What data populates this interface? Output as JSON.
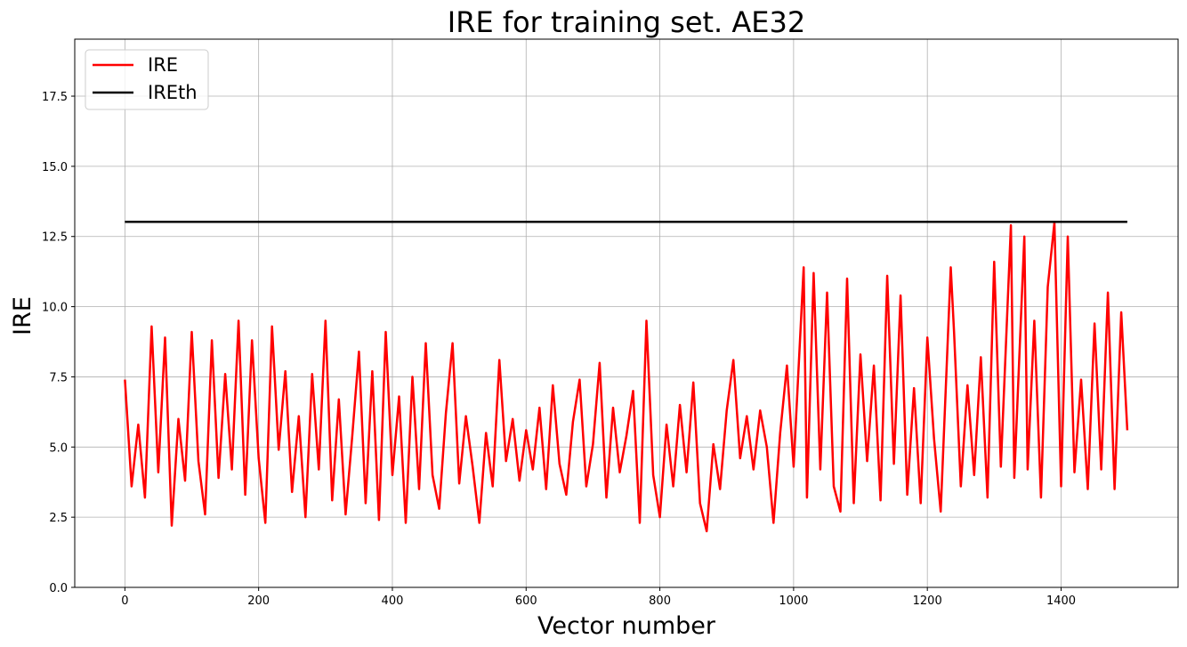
{
  "chart_data": {
    "type": "line",
    "title": "IRE for training set. AE32",
    "xlabel": "Vector number",
    "ylabel": "IRE",
    "xlim": [
      -75,
      1575
    ],
    "ylim": [
      0,
      19.53
    ],
    "xticks": [
      "0",
      "200",
      "400",
      "600",
      "800",
      "1000",
      "1200",
      "1400"
    ],
    "yticks": [
      "0.0",
      "2.5",
      "5.0",
      "7.5",
      "10.0",
      "12.5",
      "15.0",
      "17.5"
    ],
    "grid": true,
    "legend": {
      "placement": "top-left",
      "entries": [
        "IRE",
        "IREth"
      ]
    },
    "series": [
      {
        "name": "IRE",
        "color": "#ff0000",
        "x": [
          0,
          10,
          20,
          30,
          40,
          50,
          60,
          70,
          80,
          90,
          100,
          110,
          120,
          130,
          140,
          150,
          160,
          170,
          180,
          190,
          200,
          210,
          220,
          230,
          240,
          250,
          260,
          270,
          280,
          290,
          300,
          310,
          320,
          330,
          340,
          350,
          360,
          370,
          380,
          390,
          400,
          410,
          420,
          430,
          440,
          450,
          460,
          470,
          480,
          490,
          500,
          510,
          520,
          530,
          540,
          550,
          560,
          570,
          580,
          590,
          600,
          610,
          620,
          630,
          640,
          650,
          660,
          670,
          680,
          690,
          700,
          710,
          720,
          730,
          740,
          750,
          760,
          770,
          780,
          790,
          800,
          810,
          820,
          830,
          840,
          850,
          860,
          870,
          880,
          890,
          900,
          910,
          920,
          930,
          940,
          950,
          960,
          970,
          980,
          990,
          1000,
          1015,
          1020,
          1030,
          1040,
          1050,
          1060,
          1070,
          1080,
          1090,
          1100,
          1110,
          1120,
          1130,
          1140,
          1150,
          1160,
          1170,
          1180,
          1190,
          1200,
          1210,
          1220,
          1235,
          1240,
          1250,
          1260,
          1270,
          1280,
          1290,
          1300,
          1310,
          1325,
          1330,
          1345,
          1350,
          1360,
          1370,
          1380,
          1390,
          1400,
          1410,
          1420,
          1430,
          1440,
          1450,
          1460,
          1470,
          1480,
          1490,
          1499
        ],
        "y": [
          7.4,
          3.6,
          5.8,
          3.2,
          9.3,
          4.1,
          8.9,
          2.2,
          6.0,
          3.8,
          9.1,
          4.5,
          2.6,
          8.8,
          3.9,
          7.6,
          4.2,
          9.5,
          3.3,
          8.8,
          4.6,
          2.3,
          9.3,
          4.9,
          7.7,
          3.4,
          6.1,
          2.5,
          7.6,
          4.2,
          9.5,
          3.1,
          6.7,
          2.6,
          5.4,
          8.4,
          3.0,
          7.7,
          2.4,
          9.1,
          4.0,
          6.8,
          2.3,
          7.5,
          3.5,
          8.7,
          4.0,
          2.8,
          6.2,
          8.7,
          3.7,
          6.1,
          4.3,
          2.3,
          5.5,
          3.6,
          8.1,
          4.5,
          6.0,
          3.8,
          5.6,
          4.2,
          6.4,
          3.5,
          7.2,
          4.4,
          3.3,
          5.9,
          7.4,
          3.6,
          5.1,
          8.0,
          3.2,
          6.4,
          4.1,
          5.4,
          7.0,
          2.3,
          9.5,
          4.0,
          2.5,
          5.8,
          3.6,
          6.5,
          4.1,
          7.3,
          3.0,
          2.0,
          5.1,
          3.5,
          6.3,
          8.1,
          4.6,
          6.1,
          4.2,
          6.3,
          5.0,
          2.3,
          5.5,
          7.9,
          4.3,
          11.4,
          3.2,
          11.2,
          4.2,
          10.5,
          3.6,
          2.7,
          11.0,
          3.0,
          8.3,
          4.5,
          7.9,
          3.1,
          11.1,
          4.4,
          10.4,
          3.3,
          7.1,
          3.0,
          8.9,
          5.3,
          2.7,
          11.4,
          9.1,
          3.6,
          7.2,
          4.0,
          8.2,
          3.2,
          11.6,
          4.3,
          12.9,
          3.9,
          12.5,
          4.2,
          9.5,
          3.2,
          10.7,
          13.0,
          3.6,
          12.5,
          4.1,
          7.4,
          3.5,
          9.4,
          4.2,
          10.5,
          3.5,
          9.8,
          5.6
        ]
      },
      {
        "name": "IREth",
        "color": "#000000",
        "x": [
          0,
          1499
        ],
        "y": [
          13.02,
          13.02
        ]
      }
    ]
  }
}
